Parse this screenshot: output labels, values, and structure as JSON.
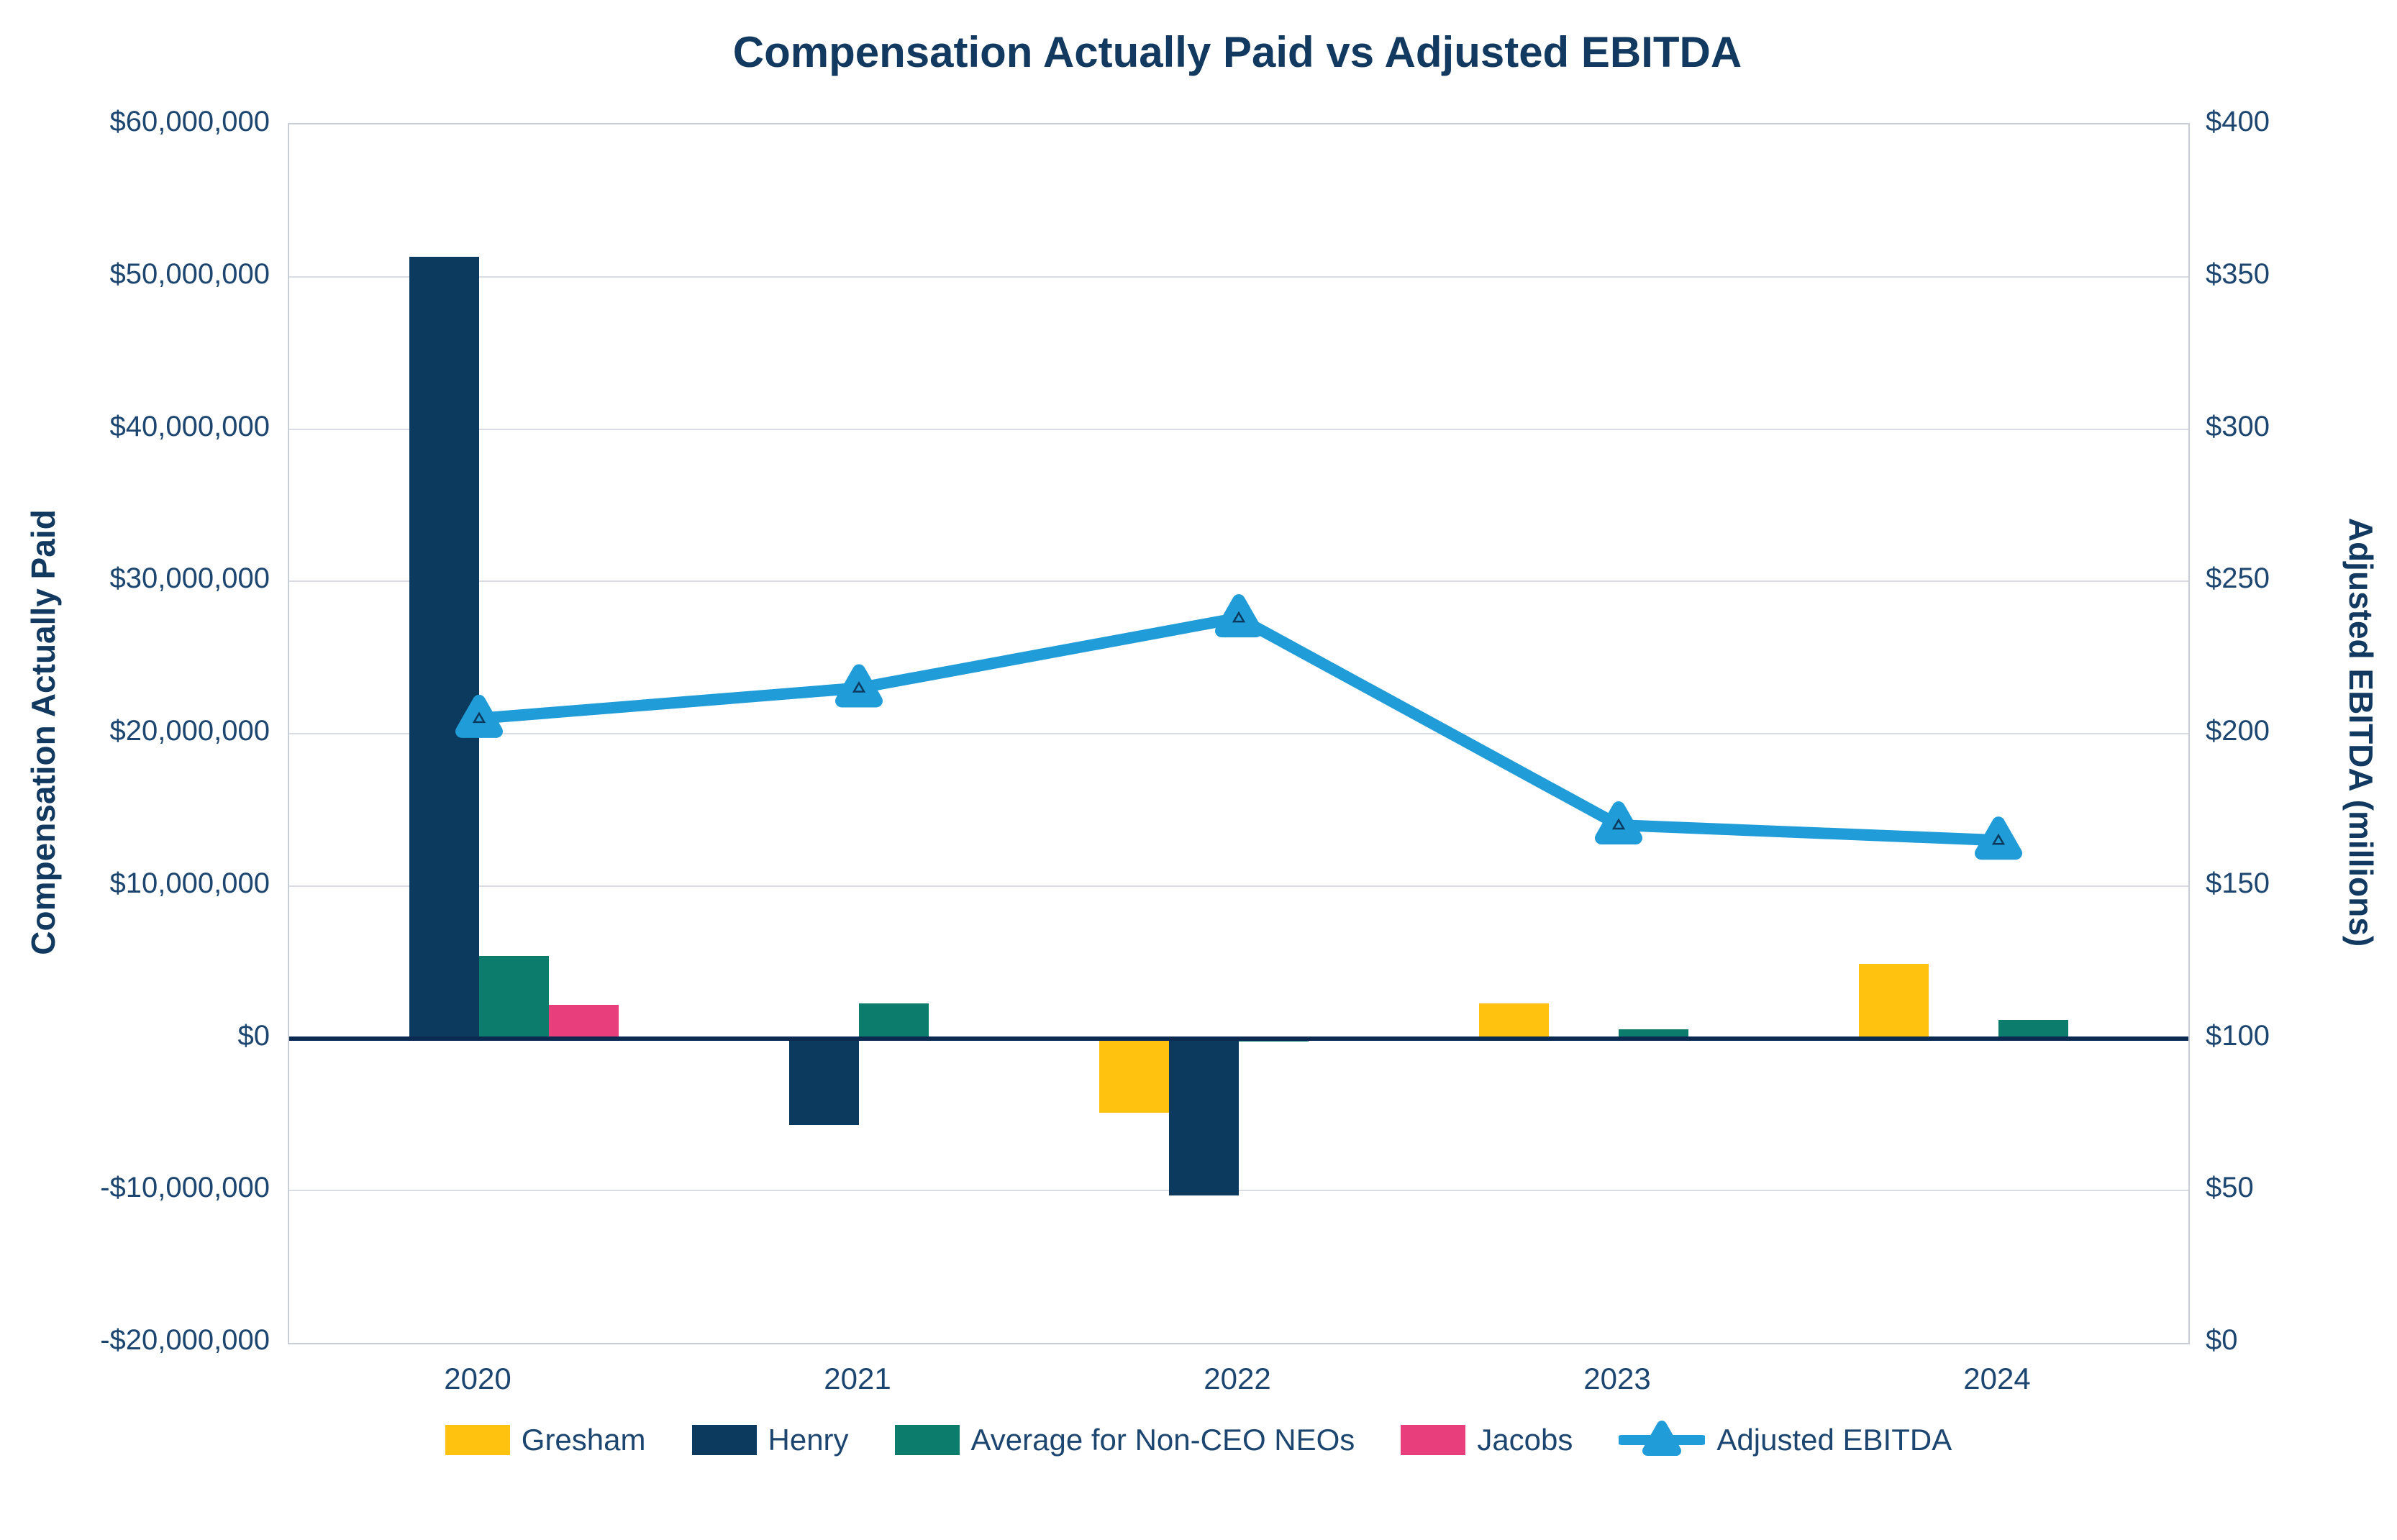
{
  "title": "Compensation Actually Paid vs Adjusted EBITDA",
  "left_axis": {
    "title": "Compensation Actually Paid",
    "ticks": [
      "$60,000,000",
      "$50,000,000",
      "$40,000,000",
      "$30,000,000",
      "$20,000,000",
      "$10,000,000",
      "$0",
      "-$10,000,000",
      "-$20,000,000"
    ],
    "min": -20000000,
    "max": 60000000,
    "step": 10000000
  },
  "right_axis": {
    "title": "Adjusted EBITDA (millions)",
    "ticks": [
      "$400",
      "$350",
      "$300",
      "$250",
      "$200",
      "$150",
      "$100",
      "$50",
      "$0"
    ],
    "min": 0,
    "max": 400,
    "step": 50
  },
  "chart_data": {
    "type": "combo-bar-line",
    "categories": [
      "2020",
      "2021",
      "2022",
      "2023",
      "2024"
    ],
    "bar_series": [
      {
        "name": "Gresham",
        "color": "#FFC20E",
        "values": [
          null,
          null,
          -4900000,
          2300000,
          4900000
        ]
      },
      {
        "name": "Henry",
        "color": "#0C3A5E",
        "values": [
          51300000,
          -5700000,
          -10300000,
          null,
          null
        ]
      },
      {
        "name": "Average for Non-CEO NEOs",
        "color": "#0C7D6C",
        "values": [
          5400000,
          2300000,
          -200000,
          600000,
          1200000
        ]
      },
      {
        "name": "Jacobs",
        "color": "#E93E7C",
        "values": [
          2200000,
          null,
          null,
          null,
          null
        ]
      }
    ],
    "line_series": [
      {
        "name": "Adjusted EBITDA",
        "color": "#209CD8",
        "axis": "right",
        "values": [
          205,
          215,
          238,
          170,
          165
        ]
      }
    ],
    "left_ylim": [
      -20000000,
      60000000
    ],
    "right_ylim": [
      0,
      400
    ],
    "grid": true,
    "legend_position": "bottom",
    "colors": {
      "title_text": "#12395F",
      "tick_text": "#1C4670",
      "gridline": "#D9DCE3",
      "zero_axis": "#0A2A52",
      "plot_border": "#C9CDD6"
    }
  }
}
